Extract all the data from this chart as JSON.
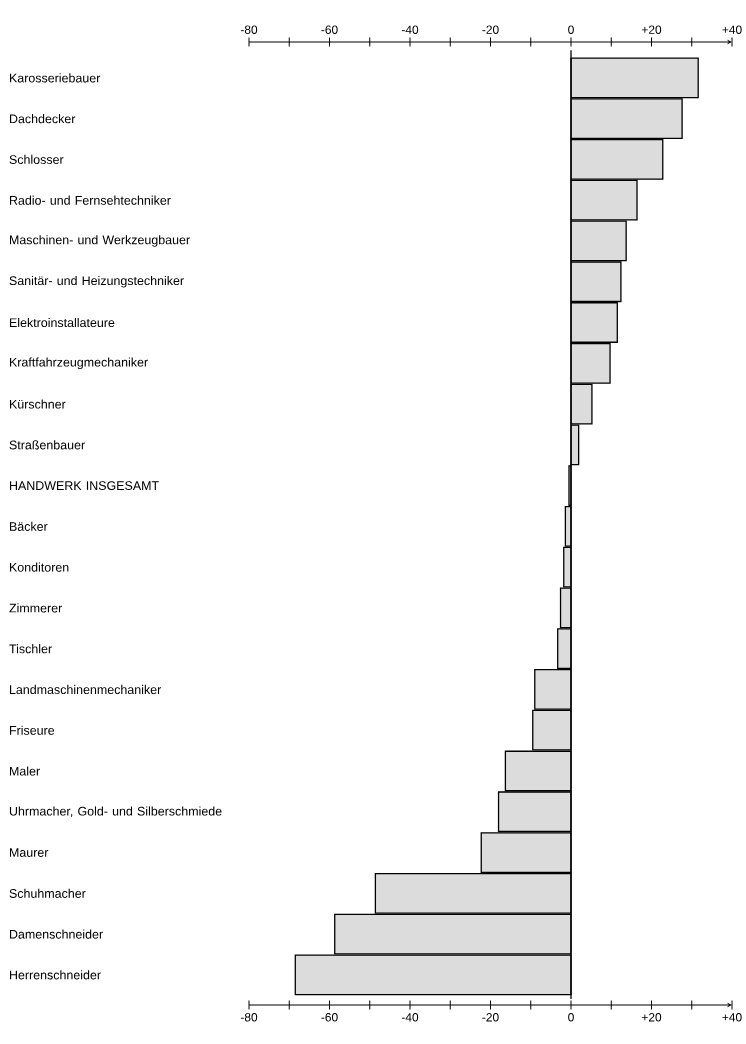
{
  "chart_data": {
    "type": "bar",
    "orientation": "horizontal",
    "categories": [
      "Karosseriebauer",
      "Dachdecker",
      "Schlosser",
      "Radio- und Fernsehtechniker",
      "Maschinen- und Werkzeugbauer",
      "Sanitär- und Heizungstechniker",
      "Elektroinstallateure",
      "Kraftfahrzeugmechaniker",
      "Kürschner",
      "Straßenbauer",
      "HANDWERK INSGESAMT",
      "Bäcker",
      "Konditoren",
      "Zimmerer",
      "Tischler",
      "Landmaschinenmechaniker",
      "Friseure",
      "Maler",
      "Uhrmacher, Gold- und Silberschmiede",
      "Maurer",
      "Schuhmacher",
      "Damenschneider",
      "Herrenschneider"
    ],
    "values": [
      31.6,
      27.6,
      22.8,
      16.4,
      13.7,
      12.4,
      11.5,
      9.7,
      5.2,
      1.9,
      -0.5,
      -1.4,
      -1.8,
      -2.6,
      -3.3,
      -9.0,
      -9.5,
      -16.3,
      -18.0,
      -22.3,
      -48.6,
      -58.7,
      -68.5
    ],
    "color": "#dcdcdc",
    "xlim": [
      -80,
      40
    ],
    "xticks": [
      -80,
      {
        "value": -70,
        "label": null
      },
      -60,
      {
        "value": -50,
        "label": null
      },
      -40,
      {
        "value": -30,
        "label": null
      },
      -20,
      {
        "value": -10,
        "label": null
      },
      0,
      {
        "value": 10,
        "label": null
      },
      {
        "value": 20,
        "label": "+20"
      },
      {
        "value": 30,
        "label": null
      },
      {
        "value": 40,
        "label": "+40"
      }
    ],
    "x2lim": [
      -80,
      40
    ],
    "x2ticks": [
      -80,
      {
        "value": -70,
        "label": null
      },
      -60,
      {
        "value": -50,
        "label": null
      },
      -40,
      {
        "value": -30,
        "label": null
      },
      -20,
      {
        "value": -10,
        "label": null
      },
      0,
      {
        "value": 10,
        "label": null
      },
      {
        "value": 20,
        "label": "+20"
      },
      {
        "value": 30,
        "label": null
      },
      {
        "value": 40,
        "label": "+40"
      }
    ],
    "ref_lines": [
      {
        "axis": "x",
        "value": 0
      }
    ]
  }
}
